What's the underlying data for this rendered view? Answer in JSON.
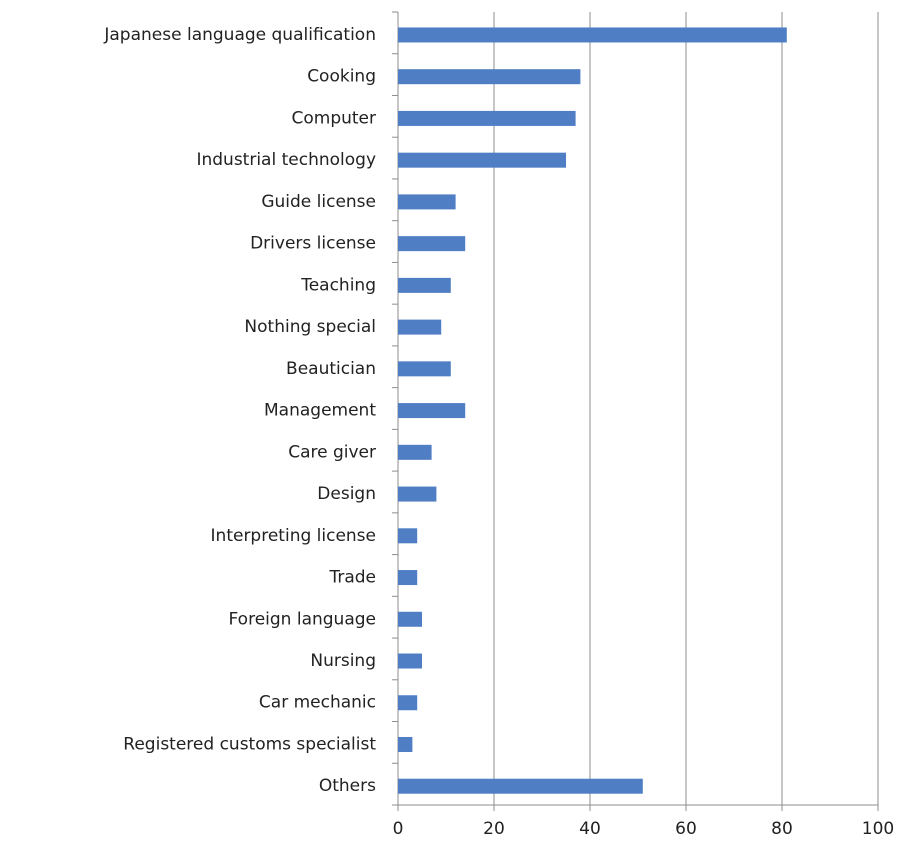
{
  "chart_data": {
    "type": "bar",
    "orientation": "horizontal",
    "categories": [
      "Japanese language qualification",
      "Cooking",
      "Computer",
      "Industrial technology",
      "Guide license",
      "Drivers license",
      "Teaching",
      "Nothing special",
      "Beautician",
      "Management",
      "Care giver",
      "Design",
      "Interpreting license",
      "Trade",
      "Foreign language",
      "Nursing",
      "Car mechanic",
      "Registered customs specialist",
      "Others"
    ],
    "values": [
      81,
      38,
      37,
      35,
      12,
      14,
      11,
      9,
      11,
      14,
      7,
      8,
      4,
      4,
      5,
      5,
      4,
      3,
      51
    ],
    "color": "#4f7ec5",
    "xlim": [
      0,
      100
    ],
    "xticks": [
      0,
      20,
      40,
      60,
      80,
      100
    ],
    "grid": true
  }
}
